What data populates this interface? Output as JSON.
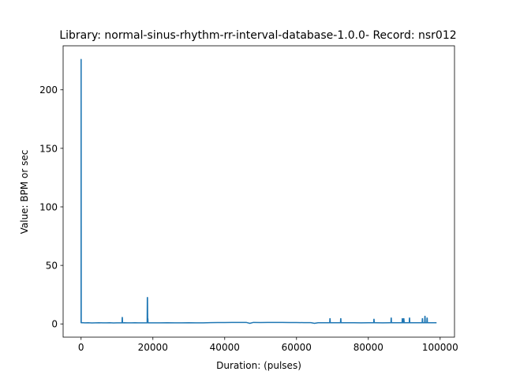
{
  "chart_data": {
    "type": "line",
    "title": "Library: normal-sinus-rhythm-rr-interval-database-1.0.0- Record: nsr012",
    "xlabel": "Duration: (pulses)",
    "ylabel": "Value: BPM or sec",
    "xlim": [
      -5000,
      104000
    ],
    "ylim": [
      -11.3,
      237.6
    ],
    "xticks": [
      0,
      20000,
      40000,
      60000,
      80000,
      100000
    ],
    "xtick_labels": [
      "0",
      "20000",
      "40000",
      "60000",
      "80000",
      "100000"
    ],
    "yticks": [
      0,
      50,
      100,
      150,
      200
    ],
    "ytick_labels": [
      "0",
      "50",
      "100",
      "150",
      "200"
    ],
    "grid": false,
    "series": [
      {
        "color": "#1f77b4",
        "x": [
          0,
          5,
          10,
          20,
          40,
          80,
          160,
          300,
          600,
          1000,
          2000,
          3000,
          4000,
          5000,
          6000,
          7000,
          8000,
          9000,
          10000,
          11000,
          11400,
          11450,
          11500,
          11550,
          11600,
          12000,
          13000,
          14000,
          15000,
          16000,
          17000,
          18000,
          18400,
          18450,
          18500,
          18550,
          18600,
          18650,
          18700,
          19000,
          20000,
          22000,
          24000,
          26000,
          28000,
          30000,
          32000,
          34000,
          36000,
          38000,
          40000,
          42000,
          44000,
          46000,
          47000,
          48000,
          50000,
          52000,
          54000,
          56000,
          58000,
          60000,
          62000,
          64000,
          65000,
          66000,
          68000,
          69000,
          69250,
          69300,
          69350,
          69400,
          70000,
          72000,
          72250,
          72300,
          72350,
          72400,
          74000,
          76000,
          78000,
          80000,
          81500,
          81550,
          81600,
          81650,
          82000,
          84000,
          86000,
          86300,
          86350,
          86400,
          86450,
          88000,
          89400,
          89450,
          89500,
          89550,
          89800,
          89850,
          89900,
          90000,
          91400,
          91450,
          91500,
          91550,
          92000,
          94000,
          95000,
          95050,
          95100,
          95150,
          95700,
          95750,
          95800,
          95850,
          96300,
          96350,
          96400,
          96450,
          97000,
          98000,
          99000
        ],
        "y": [
          0.9,
          226,
          226,
          226,
          1.0,
          1.0,
          1.0,
          1.0,
          1.0,
          0.9,
          1.0,
          0.8,
          0.9,
          1.0,
          0.9,
          0.9,
          1.0,
          0.8,
          0.9,
          0.9,
          0.9,
          5.5,
          5.5,
          0.9,
          0.9,
          1.0,
          0.9,
          0.9,
          1.0,
          0.9,
          0.9,
          0.9,
          0.9,
          22.5,
          22.5,
          4.5,
          4.5,
          0.9,
          0.9,
          0.9,
          0.9,
          0.9,
          1.0,
          0.9,
          0.9,
          1.0,
          0.9,
          0.9,
          1.1,
          1.2,
          1.2,
          1.3,
          1.3,
          1.3,
          0.5,
          1.3,
          1.2,
          1.3,
          1.3,
          1.3,
          1.2,
          1.2,
          1.1,
          1.1,
          0.5,
          1.0,
          1.0,
          1.0,
          1.0,
          4.5,
          4.5,
          1.0,
          1.0,
          1.0,
          1.0,
          4.5,
          4.5,
          1.0,
          1.0,
          1.0,
          0.9,
          1.0,
          1.0,
          4.0,
          4.0,
          1.0,
          1.0,
          0.9,
          1.0,
          1.0,
          5.0,
          5.0,
          1.0,
          1.0,
          1.0,
          4.5,
          4.5,
          1.0,
          1.0,
          4.5,
          4.5,
          1.0,
          1.0,
          5.0,
          5.0,
          1.0,
          1.0,
          1.0,
          1.0,
          4.5,
          4.5,
          1.0,
          1.0,
          6.5,
          6.5,
          1.0,
          1.0,
          5.0,
          5.0,
          1.0,
          1.0,
          1.0,
          1.0
        ]
      }
    ]
  }
}
